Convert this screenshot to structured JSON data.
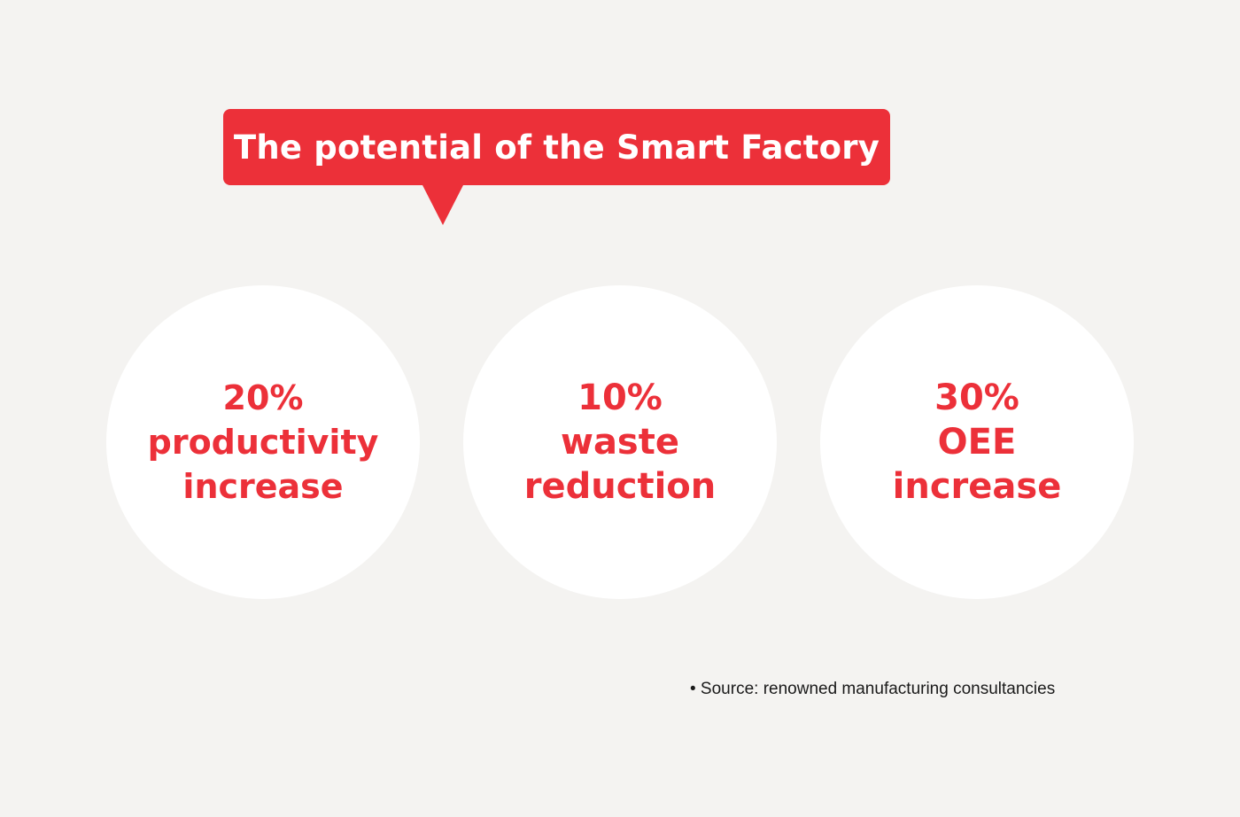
{
  "callout": {
    "title": "The potential of the Smart Factory"
  },
  "stats": [
    {
      "value": "20%",
      "line1": "productivity",
      "line2": "increase"
    },
    {
      "value": "10%",
      "line1": "waste",
      "line2": "reduction"
    },
    {
      "value": "30%",
      "line1": "OEE",
      "line2": "increase"
    }
  ],
  "footer": {
    "source": "• Source: renowned manufacturing consultancies"
  },
  "colors": {
    "background": "#f4f3f1",
    "accent": "#ec3039",
    "circle": "#ffffff",
    "text_dark": "#1a1a1a"
  }
}
